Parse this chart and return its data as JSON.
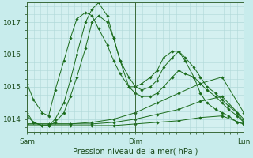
{
  "background_color": "#c8ecec",
  "plot_bg_color": "#d4f0f0",
  "grid_color": "#b0d8d8",
  "line_color": "#1a6b1a",
  "xlabel": "Pression niveau de la mer( hPa )",
  "ylim": [
    1013.6,
    1017.6
  ],
  "yticks": [
    1014,
    1015,
    1016,
    1017
  ],
  "xtick_labels": [
    "Sam",
    "Dim",
    "Lun"
  ],
  "xtick_positions": [
    0.0,
    0.5,
    1.0
  ],
  "series": [
    {
      "x": [
        0.0,
        0.03,
        0.07,
        0.1,
        0.13,
        0.17,
        0.2,
        0.23,
        0.27,
        0.3,
        0.33,
        0.37,
        0.4,
        0.43,
        0.47,
        0.5,
        0.53,
        0.57,
        0.6,
        0.63,
        0.67,
        0.7,
        0.73,
        0.77,
        0.8,
        0.83,
        0.87,
        0.9,
        0.93,
        0.97,
        1.0
      ],
      "y": [
        1015.1,
        1014.6,
        1014.2,
        1014.1,
        1014.9,
        1015.8,
        1016.5,
        1017.1,
        1017.3,
        1017.2,
        1016.8,
        1016.3,
        1015.8,
        1015.4,
        1015.0,
        1015.0,
        1015.1,
        1015.3,
        1015.5,
        1015.9,
        1016.1,
        1016.1,
        1015.8,
        1015.3,
        1014.8,
        1014.5,
        1014.3,
        1014.2,
        1014.1,
        1013.9,
        1013.85
      ]
    },
    {
      "x": [
        0.0,
        0.03,
        0.07,
        0.1,
        0.13,
        0.17,
        0.2,
        0.23,
        0.27,
        0.3,
        0.33,
        0.37,
        0.4,
        0.43,
        0.47,
        0.5,
        0.53,
        0.57,
        0.6,
        0.63,
        0.67,
        0.7,
        0.73,
        0.77,
        0.8,
        0.83,
        0.87,
        0.9,
        0.93,
        0.97,
        1.0
      ],
      "y": [
        1014.2,
        1013.9,
        1013.8,
        1013.8,
        1014.0,
        1014.5,
        1015.2,
        1016.0,
        1017.0,
        1017.4,
        1017.6,
        1017.2,
        1016.5,
        1015.8,
        1015.0,
        1014.8,
        1014.7,
        1014.7,
        1014.8,
        1015.0,
        1015.3,
        1015.5,
        1015.4,
        1015.3,
        1015.1,
        1014.9,
        1014.7,
        1014.5,
        1014.3,
        1014.1,
        1013.9
      ]
    },
    {
      "x": [
        0.0,
        0.03,
        0.07,
        0.1,
        0.13,
        0.17,
        0.2,
        0.23,
        0.27,
        0.3,
        0.33,
        0.37,
        0.4,
        0.43,
        0.47,
        0.5,
        0.53,
        0.57,
        0.6,
        0.63,
        0.67,
        0.7,
        0.73,
        0.77,
        0.8,
        0.83,
        0.87,
        0.9,
        0.93,
        0.97,
        1.0
      ],
      "y": [
        1014.1,
        1013.9,
        1013.8,
        1013.8,
        1013.9,
        1014.2,
        1014.7,
        1015.3,
        1016.2,
        1017.0,
        1017.2,
        1017.0,
        1016.5,
        1015.8,
        1015.3,
        1015.0,
        1014.9,
        1015.0,
        1015.2,
        1015.6,
        1015.9,
        1016.1,
        1015.9,
        1015.6,
        1015.3,
        1015.0,
        1014.8,
        1014.6,
        1014.4,
        1014.2,
        1013.9
      ]
    },
    {
      "x": [
        0.0,
        0.1,
        0.2,
        0.3,
        0.4,
        0.5,
        0.6,
        0.7,
        0.8,
        0.9,
        1.0
      ],
      "y": [
        1013.85,
        1013.85,
        1013.85,
        1013.9,
        1014.0,
        1014.2,
        1014.5,
        1014.8,
        1015.1,
        1015.3,
        1014.2
      ]
    },
    {
      "x": [
        0.0,
        0.1,
        0.2,
        0.3,
        0.4,
        0.5,
        0.6,
        0.7,
        0.8,
        0.9,
        1.0
      ],
      "y": [
        1013.85,
        1013.85,
        1013.85,
        1013.85,
        1013.9,
        1014.0,
        1014.15,
        1014.3,
        1014.55,
        1014.7,
        1014.0
      ]
    },
    {
      "x": [
        0.0,
        0.1,
        0.2,
        0.3,
        0.4,
        0.5,
        0.6,
        0.7,
        0.8,
        0.9,
        1.0
      ],
      "y": [
        1013.8,
        1013.8,
        1013.8,
        1013.8,
        1013.8,
        1013.85,
        1013.9,
        1013.95,
        1014.05,
        1014.1,
        1013.85
      ]
    }
  ]
}
